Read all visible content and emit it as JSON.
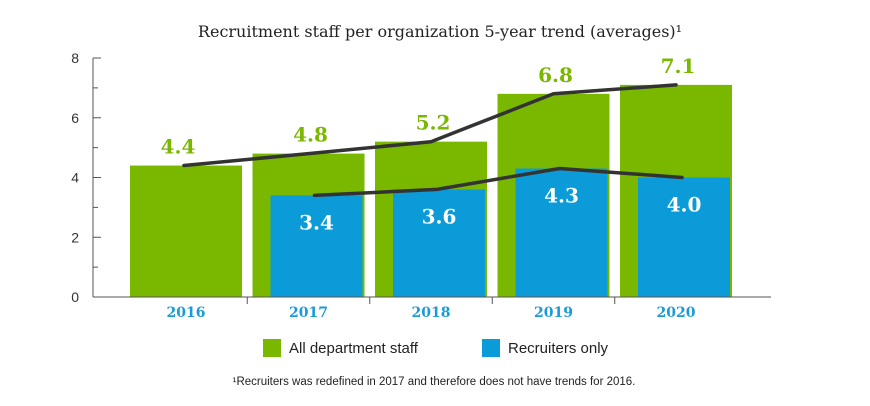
{
  "chart_data": {
    "type": "bar",
    "title": "Recruitment staff per organization 5-year trend (averages)¹",
    "categories": [
      "2016",
      "2017",
      "2018",
      "2019",
      "2020"
    ],
    "ylim": [
      0,
      8
    ],
    "yticks": [
      "0",
      "2",
      "4",
      "6",
      "8"
    ],
    "grid": false,
    "legend_position": "bottom",
    "series": [
      {
        "name": "All department staff",
        "values": [
          4.4,
          4.8,
          5.2,
          6.8,
          7.1
        ],
        "labels": [
          "4.4",
          "4.8",
          "5.2",
          "6.8",
          "7.1"
        ],
        "color": "#7ab800"
      },
      {
        "name": "Recruiters only",
        "values": [
          null,
          3.4,
          3.6,
          4.3,
          4.0
        ],
        "labels": [
          "",
          "3.4",
          "3.6",
          "4.3",
          "4.0"
        ],
        "color": "#0a9bd8"
      }
    ],
    "trend_line_color": "#333333",
    "category_label_color": "#1a9bd7",
    "footnote": "¹Recruiters was redefined in 2017 and therefore does not have trends for 2016."
  }
}
